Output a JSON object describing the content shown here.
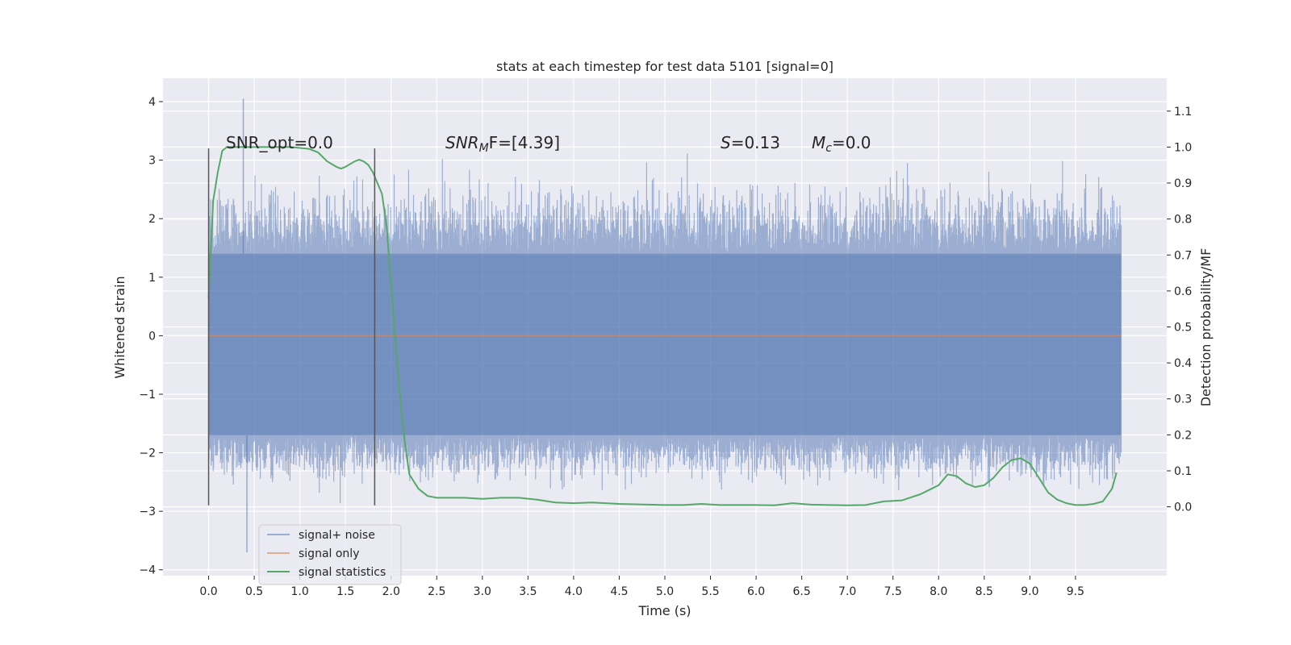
{
  "chart_data": {
    "type": "line",
    "title": "stats at each timestep for test data 5101 [signal=0]",
    "xlabel": "Time (s)",
    "ylabel_left": "Whitened strain",
    "ylabel_right": "Detection probability/MF",
    "xlim": [
      -0.5,
      10.5
    ],
    "ylim_left": [
      -4.1,
      4.4
    ],
    "ylim_right": [
      -0.1914,
      1.1914
    ],
    "x_ticks": [
      "0.0",
      "0.5",
      "1.0",
      "1.5",
      "2.0",
      "2.5",
      "3.0",
      "3.5",
      "4.0",
      "4.5",
      "5.0",
      "5.5",
      "6.0",
      "6.5",
      "7.0",
      "7.5",
      "8.0",
      "8.5",
      "9.0",
      "9.5"
    ],
    "y_left_ticks": [
      "4",
      "3",
      "2",
      "1",
      "0",
      "−1",
      "−2",
      "−3",
      "−4"
    ],
    "y_right_ticks": [
      "1.1",
      "1.0",
      "0.9",
      "0.8",
      "0.7",
      "0.6",
      "0.5",
      "0.4",
      "0.3",
      "0.2",
      "0.1",
      "0.0"
    ],
    "grid": true,
    "legend_position": "lower-left",
    "annotations": {
      "snr_opt": "SNR_opt=0.0",
      "snr_mf_a": "SNR",
      "snr_mf_sub": "M",
      "snr_mf_b": "F=[4.39]",
      "s_var": "S",
      "s_val": "=0.13",
      "mc_var": "M",
      "mc_sub": "c",
      "mc_val": "=0.0"
    },
    "vlines": {
      "x": [
        0.0,
        1.82
      ],
      "y_range": [
        -2.9,
        3.2
      ]
    },
    "series": [
      {
        "name": "signal+ noise",
        "color": "#4c72b0",
        "axis": "left",
        "x_range": [
          0.0,
          10.0
        ],
        "core_band": [
          -1.7,
          1.4
        ],
        "envelope_typical": [
          -2.5,
          2.6
        ],
        "max_spike": 4.05,
        "min_spike": -3.7
      },
      {
        "name": "signal only",
        "color": "#dd8452",
        "axis": "left",
        "x": [
          0.0,
          10.0
        ],
        "y": [
          0.0,
          0.0
        ]
      },
      {
        "name": "signal statistics",
        "color": "#55a868",
        "axis": "right",
        "x": [
          0.0,
          0.05,
          0.1,
          0.15,
          0.2,
          0.3,
          0.5,
          0.7,
          0.9,
          1.1,
          1.2,
          1.3,
          1.4,
          1.45,
          1.5,
          1.6,
          1.65,
          1.7,
          1.75,
          1.8,
          1.9,
          1.95,
          2.0,
          2.05,
          2.1,
          2.15,
          2.2,
          2.3,
          2.4,
          2.5,
          2.6,
          2.8,
          3.0,
          3.2,
          3.4,
          3.6,
          3.8,
          4.0,
          4.2,
          4.5,
          5.0,
          5.2,
          5.4,
          5.6,
          5.8,
          6.0,
          6.2,
          6.4,
          6.6,
          6.8,
          7.0,
          7.2,
          7.4,
          7.6,
          7.8,
          8.0,
          8.1,
          8.2,
          8.3,
          8.4,
          8.5,
          8.6,
          8.7,
          8.8,
          8.9,
          9.0,
          9.1,
          9.2,
          9.3,
          9.4,
          9.5,
          9.6,
          9.7,
          9.8,
          9.9,
          9.95
        ],
        "y": [
          0.58,
          0.85,
          0.93,
          0.99,
          1.0,
          1.0,
          1.0,
          1.0,
          1.0,
          0.995,
          0.985,
          0.96,
          0.945,
          0.94,
          0.945,
          0.96,
          0.965,
          0.96,
          0.95,
          0.93,
          0.87,
          0.78,
          0.62,
          0.45,
          0.3,
          0.18,
          0.09,
          0.05,
          0.03,
          0.025,
          0.025,
          0.025,
          0.022,
          0.025,
          0.025,
          0.02,
          0.012,
          0.01,
          0.012,
          0.008,
          0.005,
          0.005,
          0.008,
          0.005,
          0.005,
          0.005,
          0.004,
          0.01,
          0.006,
          0.005,
          0.004,
          0.005,
          0.015,
          0.018,
          0.035,
          0.06,
          0.09,
          0.085,
          0.065,
          0.055,
          0.06,
          0.08,
          0.11,
          0.13,
          0.135,
          0.12,
          0.08,
          0.04,
          0.02,
          0.01,
          0.005,
          0.005,
          0.008,
          0.015,
          0.05,
          0.095
        ]
      }
    ]
  }
}
